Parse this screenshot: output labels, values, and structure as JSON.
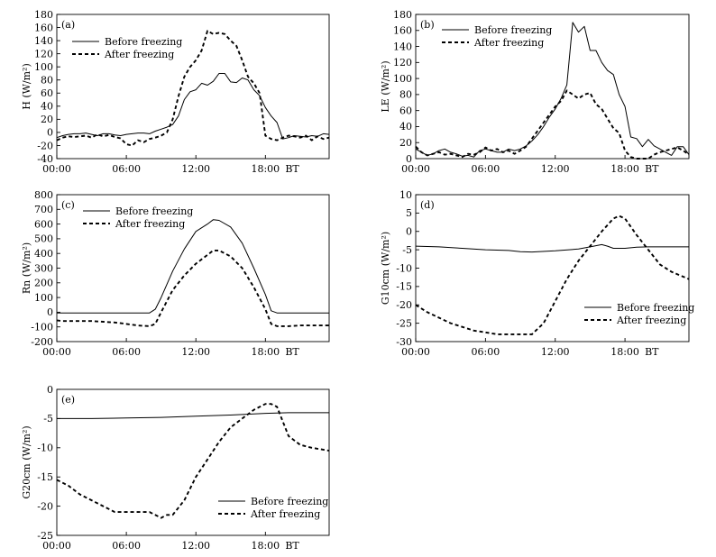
{
  "figure": {
    "x_tick_labels": [
      "00:00",
      "06:00",
      "12:00",
      "18:00"
    ],
    "bt_label": "BT"
  },
  "chart_data": [
    {
      "id": "a",
      "type": "line",
      "panel_label": "(a)",
      "title": "",
      "xlabel": "",
      "ylabel": "H (W/m²)",
      "ylim": [
        -40,
        180
      ],
      "yticks": [
        -40,
        -20,
        0,
        20,
        40,
        60,
        80,
        100,
        120,
        140,
        160,
        180
      ],
      "xlim": [
        0,
        23.5
      ],
      "legend": "top-left",
      "series": [
        {
          "name": "Before freezing",
          "style": "solid",
          "x": [
            0,
            0.5,
            1,
            1.5,
            2,
            2.5,
            3,
            3.5,
            4,
            4.5,
            5,
            5.5,
            6,
            6.5,
            7,
            7.5,
            8,
            8.5,
            9,
            9.5,
            10,
            10.5,
            11,
            11.5,
            12,
            12.5,
            13,
            13.5,
            14,
            14.5,
            15,
            15.5,
            16,
            16.5,
            17,
            17.5,
            18,
            18.5,
            19,
            19.5,
            20,
            20.5,
            21,
            21.5,
            22,
            22.5,
            23,
            23.5
          ],
          "y": [
            -8,
            -5,
            -3,
            -2,
            -2,
            -1,
            -3,
            -5,
            -2,
            -2,
            -4,
            -5,
            -3,
            -2,
            -1,
            -1,
            -2,
            2,
            5,
            8,
            12,
            25,
            50,
            62,
            65,
            75,
            72,
            78,
            90,
            90,
            77,
            76,
            83,
            80,
            65,
            56,
            38,
            25,
            15,
            -10,
            -8,
            -5,
            -6,
            -7,
            -5,
            -6,
            -2,
            -3
          ]
        },
        {
          "name": "After freezing",
          "style": "dashed",
          "x": [
            0,
            0.5,
            1,
            1.5,
            2,
            2.5,
            3,
            3.5,
            4,
            4.5,
            5,
            5.5,
            6,
            6.5,
            7,
            7.5,
            8,
            8.5,
            9,
            9.5,
            10,
            10.5,
            11,
            11.5,
            12,
            12.5,
            13,
            13.5,
            14,
            14.5,
            15,
            15.5,
            16,
            16.5,
            17,
            17.5,
            18,
            18.5,
            19,
            19.5,
            20,
            20.5,
            21,
            21.5,
            22,
            22.5,
            23,
            23.5
          ],
          "y": [
            -12,
            -8,
            -6,
            -7,
            -6,
            -5,
            -8,
            -3,
            -6,
            -4,
            -7,
            -9,
            -18,
            -20,
            -12,
            -15,
            -10,
            -8,
            -5,
            0,
            20,
            55,
            85,
            100,
            110,
            125,
            155,
            150,
            152,
            150,
            140,
            132,
            110,
            85,
            75,
            60,
            -5,
            -10,
            -12,
            -8,
            -5,
            -6,
            -8,
            -5,
            -12,
            -6,
            -10,
            -8
          ]
        }
      ]
    },
    {
      "id": "b",
      "type": "line",
      "panel_label": "(b)",
      "title": "",
      "xlabel": "",
      "ylabel": "LE (W/m²)",
      "ylim": [
        0,
        180
      ],
      "yticks": [
        0,
        20,
        40,
        60,
        80,
        100,
        120,
        140,
        160,
        180
      ],
      "xlim": [
        0,
        23.5
      ],
      "legend": "top-left",
      "series": [
        {
          "name": "Before freezing",
          "style": "solid",
          "x": [
            0,
            0.5,
            1,
            1.5,
            2,
            2.5,
            3,
            3.5,
            4,
            4.5,
            5,
            5.5,
            6,
            6.5,
            7,
            7.5,
            8,
            8.5,
            9,
            9.5,
            10,
            10.5,
            11,
            11.5,
            12,
            12.5,
            13,
            13.5,
            14,
            14.5,
            15,
            15.5,
            16,
            16.5,
            17,
            17.5,
            18,
            18.5,
            19,
            19.5,
            20,
            20.5,
            21,
            21.5,
            22,
            22.5,
            23,
            23.5
          ],
          "y": [
            12,
            8,
            4,
            6,
            10,
            12,
            8,
            6,
            3,
            4,
            2,
            10,
            12,
            10,
            8,
            8,
            12,
            10,
            12,
            16,
            22,
            30,
            40,
            52,
            62,
            75,
            92,
            170,
            158,
            165,
            135,
            135,
            120,
            110,
            105,
            80,
            65,
            27,
            25,
            15,
            24,
            16,
            12,
            8,
            4,
            15,
            15,
            5
          ]
        },
        {
          "name": "After freezing",
          "style": "dashed",
          "x": [
            0,
            0.5,
            1,
            1.5,
            2,
            2.5,
            3,
            3.5,
            4,
            4.5,
            5,
            5.5,
            6,
            6.5,
            7,
            7.5,
            8,
            8.5,
            9,
            9.5,
            10,
            10.5,
            11,
            11.5,
            12,
            12.5,
            13,
            13.5,
            14,
            14.5,
            15,
            15.5,
            16,
            16.5,
            17,
            17.5,
            18,
            18.5,
            19,
            19.5,
            20,
            20.5,
            21,
            21.5,
            22,
            22.5,
            23,
            23.5
          ],
          "y": [
            15,
            8,
            4,
            6,
            8,
            5,
            6,
            4,
            2,
            6,
            5,
            8,
            14,
            10,
            12,
            8,
            10,
            6,
            10,
            15,
            25,
            35,
            45,
            55,
            65,
            72,
            85,
            80,
            75,
            80,
            82,
            68,
            62,
            50,
            38,
            32,
            10,
            2,
            0,
            0,
            0,
            5,
            8,
            10,
            12,
            14,
            10,
            5
          ]
        }
      ]
    },
    {
      "id": "c",
      "type": "line",
      "panel_label": "(c)",
      "title": "",
      "xlabel": "",
      "ylabel": "Rn (W/m²)",
      "ylim": [
        -200,
        800
      ],
      "yticks": [
        -200,
        -100,
        0,
        100,
        200,
        300,
        400,
        500,
        600,
        700,
        800
      ],
      "xlim": [
        0,
        23.5
      ],
      "legend": "top-left",
      "series": [
        {
          "name": "Before freezing",
          "style": "solid",
          "x": [
            0,
            1,
            2,
            3,
            4,
            5,
            6,
            7,
            8,
            8.5,
            9,
            10,
            11,
            12,
            13,
            13.5,
            14,
            15,
            16,
            17,
            18,
            18.5,
            19,
            20,
            21,
            22,
            23,
            23.5
          ],
          "y": [
            -5,
            -5,
            -5,
            -5,
            -5,
            -5,
            -5,
            -5,
            -5,
            20,
            100,
            280,
            430,
            550,
            600,
            630,
            625,
            580,
            470,
            300,
            120,
            10,
            -5,
            -5,
            -5,
            -5,
            -5,
            -5
          ]
        },
        {
          "name": "After freezing",
          "style": "dashed",
          "x": [
            0,
            0.5,
            1,
            2,
            3,
            4,
            5,
            6,
            7,
            8,
            8.5,
            9,
            10,
            11,
            12,
            13,
            13.5,
            14,
            15,
            16,
            17,
            18,
            18.5,
            19,
            20,
            21,
            22,
            23,
            23.5
          ],
          "y": [
            -55,
            -60,
            -60,
            -60,
            -60,
            -65,
            -70,
            -80,
            -90,
            -95,
            -80,
            0,
            150,
            250,
            330,
            390,
            420,
            420,
            380,
            300,
            170,
            20,
            -80,
            -95,
            -95,
            -90,
            -90,
            -90,
            -90
          ]
        }
      ]
    },
    {
      "id": "d",
      "type": "line",
      "panel_label": "(d)",
      "title": "",
      "xlabel": "",
      "ylabel": "G10cm (W/m²)",
      "ylim": [
        -30,
        10
      ],
      "yticks": [
        -30,
        -25,
        -20,
        -15,
        -10,
        -5,
        0,
        5,
        10
      ],
      "xlim": [
        0,
        23.5
      ],
      "legend": "bottom-right",
      "series": [
        {
          "name": "Before freezing",
          "style": "solid",
          "x": [
            0,
            2,
            4,
            6,
            8,
            9,
            10,
            12,
            14,
            15,
            16,
            16.5,
            17,
            18,
            19,
            20,
            22,
            23.5
          ],
          "y": [
            -4,
            -4.2,
            -4.6,
            -5,
            -5.2,
            -5.5,
            -5.6,
            -5.3,
            -4.8,
            -4.2,
            -3.6,
            -4,
            -4.6,
            -4.6,
            -4.3,
            -4.2,
            -4.2,
            -4.2
          ]
        },
        {
          "name": "After freezing",
          "style": "dashed",
          "x": [
            0,
            1,
            2,
            3,
            4,
            5,
            6,
            7,
            8,
            9,
            10,
            11,
            12,
            13,
            14,
            15,
            16,
            17,
            17.5,
            18,
            19,
            20,
            21,
            22,
            23.5
          ],
          "y": [
            -20,
            -22,
            -23.5,
            -25,
            -26,
            -27,
            -27.5,
            -28,
            -28,
            -28,
            -28,
            -25,
            -19,
            -13,
            -8,
            -4,
            0,
            3.5,
            4.2,
            3.5,
            -1,
            -5,
            -9,
            -11,
            -13
          ]
        }
      ]
    },
    {
      "id": "e",
      "type": "line",
      "panel_label": "(e)",
      "title": "",
      "xlabel": "",
      "ylabel": "G20cm (W/m²)",
      "ylim": [
        -25,
        0
      ],
      "yticks": [
        -25,
        -20,
        -15,
        -10,
        -5,
        0
      ],
      "xlim": [
        0,
        23.5
      ],
      "legend": "bottom-right",
      "series": [
        {
          "name": "Before freezing",
          "style": "solid",
          "x": [
            0,
            3,
            6,
            9,
            12,
            15,
            18,
            20,
            23.5
          ],
          "y": [
            -5,
            -5,
            -4.9,
            -4.8,
            -4.6,
            -4.4,
            -4.1,
            -4,
            -4
          ]
        },
        {
          "name": "After freezing",
          "style": "dashed",
          "x": [
            0,
            1,
            2,
            3,
            4,
            5,
            6,
            7,
            8,
            9,
            9.5,
            10,
            11,
            12,
            13,
            14,
            15,
            16,
            17,
            18,
            18.5,
            19,
            20,
            21,
            22,
            23.5
          ],
          "y": [
            -15.5,
            -16.5,
            -18,
            -19,
            -20,
            -21,
            -21,
            -21,
            -21,
            -22,
            -21.5,
            -21.5,
            -19,
            -15,
            -12,
            -9,
            -6.5,
            -5,
            -3.5,
            -2.5,
            -2.5,
            -3,
            -8,
            -9.5,
            -10,
            -10.5
          ]
        }
      ]
    }
  ]
}
